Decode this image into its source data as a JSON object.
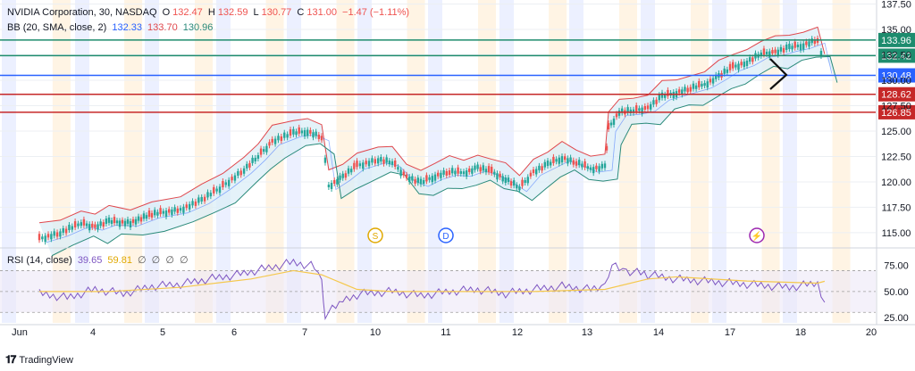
{
  "legend": {
    "symbol": "NVIDIA Corporation, 30, NASDAQ",
    "o_label": "O",
    "o_value": "132.47",
    "h_label": "H",
    "h_value": "132.59",
    "l_label": "L",
    "l_value": "130.77",
    "c_label": "C",
    "c_value": "131.00",
    "change": "−1.47 (−1.11%)",
    "bb_label": "BB (20, SMA, close, 2)",
    "bb_values": [
      "132.33",
      "133.70",
      "130.96"
    ],
    "rsi_label": "RSI (14, close)",
    "rsi_values": [
      "39.65",
      "59.81",
      "∅",
      "∅",
      "∅",
      "∅"
    ]
  },
  "brand": "TradingView",
  "colors": {
    "up": "#26a69a",
    "down": "#ef5350",
    "bb_upper": "#e0474c",
    "bb_lower": "#2a8a7a",
    "bb_fill": "#dbeef7",
    "rsi": "#7e57c2",
    "rsi_ma": "#f5c84c",
    "level_green": "#1e8c6e",
    "level_blue": "#2962ff",
    "level_red": "#c62828",
    "band_blue": "#dfe6ff",
    "band_orange": "#fff0d9"
  },
  "chart_data": {
    "type": "candlestick",
    "y_axis_ticks": [
      "137.50",
      "135.00",
      "132.50",
      "130.00",
      "127.50",
      "125.00",
      "122.50",
      "120.00",
      "117.50",
      "115.00"
    ],
    "ylim": [
      113.5,
      137.9
    ],
    "x_axis_ticks": [
      "Jun",
      "4",
      "5",
      "6",
      "7",
      "10",
      "11",
      "12",
      "13",
      "14",
      "17",
      "18",
      "20"
    ],
    "rsi_axis_ticks": [
      "75.00",
      "50.00",
      "25.00"
    ],
    "rsi_ylim": [
      20,
      90
    ],
    "levels": [
      {
        "value": 133.96,
        "label": "133.96",
        "color": "level_green"
      },
      {
        "value": 132.42,
        "label": "132.42",
        "color": "level_green"
      },
      {
        "value": 130.48,
        "label": "130.48",
        "color": "level_blue"
      },
      {
        "value": 128.62,
        "label": "128.62",
        "color": "level_red"
      },
      {
        "value": 126.85,
        "label": "126.85",
        "color": "level_red"
      }
    ],
    "event_markers": [
      {
        "label": "S",
        "day_index": 5
      },
      {
        "label": "D",
        "day_index": 6
      },
      {
        "label": "⚡",
        "day_index": 10
      }
    ],
    "close_path": [
      [
        0,
        114.4
      ],
      [
        0.3,
        115.0
      ],
      [
        0.6,
        115.9
      ],
      [
        0.8,
        115.6
      ],
      [
        1.0,
        116.1
      ],
      [
        1.3,
        116.0
      ],
      [
        1.6,
        116.8
      ],
      [
        2.0,
        117.3
      ],
      [
        2.3,
        118.2
      ],
      [
        2.6,
        119.6
      ],
      [
        2.9,
        121.2
      ],
      [
        3.1,
        122.5
      ],
      [
        3.3,
        124.0
      ],
      [
        3.6,
        124.8
      ],
      [
        3.8,
        125.0
      ],
      [
        4.0,
        124.4
      ],
      [
        4.1,
        119.6
      ],
      [
        4.3,
        120.5
      ],
      [
        4.5,
        121.6
      ],
      [
        4.8,
        122.2
      ],
      [
        5.0,
        121.9
      ],
      [
        5.2,
        120.5
      ],
      [
        5.4,
        119.9
      ],
      [
        5.6,
        120.6
      ],
      [
        5.8,
        121.0
      ],
      [
        6.0,
        120.9
      ],
      [
        6.2,
        121.4
      ],
      [
        6.4,
        121.0
      ],
      [
        6.6,
        120.3
      ],
      [
        6.8,
        119.4
      ],
      [
        7.0,
        121.0
      ],
      [
        7.2,
        121.7
      ],
      [
        7.4,
        122.4
      ],
      [
        7.6,
        121.9
      ],
      [
        7.8,
        121.3
      ],
      [
        8.0,
        121.5
      ],
      [
        8.05,
        125.3
      ],
      [
        8.2,
        126.9
      ],
      [
        8.4,
        127.0
      ],
      [
        8.6,
        127.3
      ],
      [
        8.8,
        128.4
      ],
      [
        9.0,
        128.8
      ],
      [
        9.2,
        129.2
      ],
      [
        9.4,
        129.6
      ],
      [
        9.6,
        130.4
      ],
      [
        9.8,
        131.3
      ],
      [
        10.0,
        131.8
      ],
      [
        10.2,
        132.6
      ],
      [
        10.4,
        132.8
      ],
      [
        10.6,
        133.2
      ],
      [
        10.8,
        133.5
      ],
      [
        11.0,
        134.0
      ],
      [
        11.1,
        131.0
      ]
    ],
    "rsi_path": [
      [
        0,
        48
      ],
      [
        0.4,
        44
      ],
      [
        0.8,
        52
      ],
      [
        1.2,
        48
      ],
      [
        1.6,
        55
      ],
      [
        2.0,
        57
      ],
      [
        2.4,
        62
      ],
      [
        2.8,
        66
      ],
      [
        3.2,
        72
      ],
      [
        3.6,
        78
      ],
      [
        3.9,
        74
      ],
      [
        4.0,
        60
      ],
      [
        4.05,
        28
      ],
      [
        4.3,
        40
      ],
      [
        4.6,
        48
      ],
      [
        5.0,
        50
      ],
      [
        5.4,
        46
      ],
      [
        5.8,
        50
      ],
      [
        6.2,
        52
      ],
      [
        6.6,
        48
      ],
      [
        7.0,
        52
      ],
      [
        7.4,
        55
      ],
      [
        7.8,
        52
      ],
      [
        8.0,
        55
      ],
      [
        8.1,
        78
      ],
      [
        8.3,
        70
      ],
      [
        8.6,
        66
      ],
      [
        9.0,
        62
      ],
      [
        9.4,
        60
      ],
      [
        9.8,
        58
      ],
      [
        10.2,
        56
      ],
      [
        10.6,
        54
      ],
      [
        11.0,
        58
      ],
      [
        11.1,
        39.65
      ]
    ],
    "rsi_ma_path": [
      [
        0,
        50
      ],
      [
        1,
        50
      ],
      [
        2,
        54
      ],
      [
        3,
        62
      ],
      [
        3.6,
        70
      ],
      [
        4.0,
        66
      ],
      [
        4.5,
        52
      ],
      [
        5,
        50
      ],
      [
        6,
        50
      ],
      [
        7,
        50
      ],
      [
        8,
        52
      ],
      [
        8.6,
        62
      ],
      [
        9,
        64
      ],
      [
        10,
        60
      ],
      [
        11,
        58
      ],
      [
        11.1,
        59.81
      ]
    ]
  }
}
